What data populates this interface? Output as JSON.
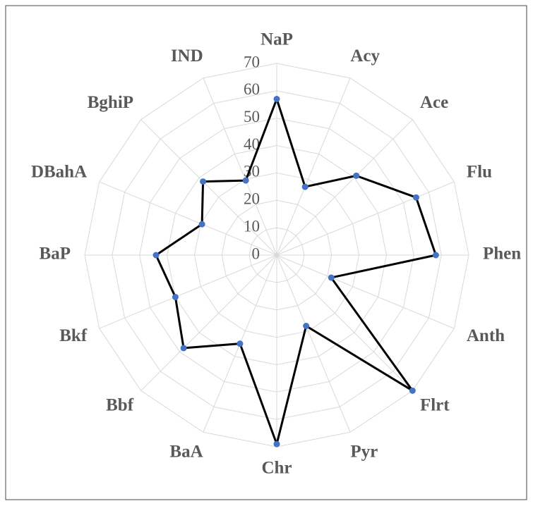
{
  "chart_data": {
    "type": "radar",
    "categories": [
      "NaP",
      "Acy",
      "Ace",
      "Flu",
      "Phen",
      "Anth",
      "Flrt",
      "Pyr",
      "Chr",
      "BaA",
      "Bbf",
      "Bkf",
      "BaP",
      "DBahA",
      "BghiP",
      "IND"
    ],
    "values": [
      57,
      27,
      41,
      55,
      58,
      21.5,
      70,
      28,
      69,
      35,
      48,
      40,
      44,
      29.5,
      38,
      29.5
    ],
    "color": "#000000",
    "marker_color": "#4472c4",
    "ylim": [
      0,
      70
    ],
    "yticks": [
      0,
      10,
      20,
      30,
      40,
      50,
      60,
      70
    ],
    "grid": true
  }
}
